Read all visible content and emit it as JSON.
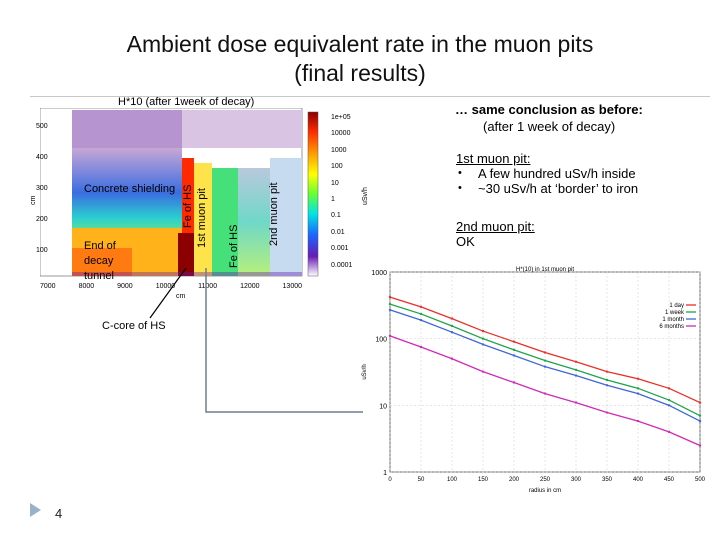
{
  "slide": {
    "title_line1": "Ambient dose equivalent rate in the muon pits",
    "title_line2": "(final results)",
    "page_number": "4"
  },
  "left_figure": {
    "title": "H*10 (after 1week of decay)",
    "y_axis_label": "cm",
    "x_axis_label": "cm",
    "y_ticks": [
      "500",
      "400",
      "300",
      "200",
      "100",
      "0"
    ],
    "x_ticks": [
      "7000",
      "8000",
      "9000",
      "10000",
      "11000",
      "12000",
      "13000"
    ],
    "colorbar_label": "uSv/h",
    "colorbar_ticks": [
      "1e+05",
      "10000",
      "1000",
      "100",
      "10",
      "1",
      "0.1",
      "0.01",
      "0.001",
      "0.0001"
    ],
    "labels": {
      "concrete": "Concrete shielding",
      "end_tunnel_1": "End of",
      "end_tunnel_2": "decay",
      "end_tunnel_3": "tunnel",
      "fe_hs_1": "Fe of HS",
      "first_pit": "1st muon pit",
      "fe_hs_2": "Fe of HS",
      "second_pit": "2nd muon pit",
      "ccore": "C-core of HS"
    }
  },
  "summary": {
    "line1": "… same conclusion as before:",
    "line2": "(after 1 week of decay)"
  },
  "notes": {
    "pit1_heading": "1st muon pit:",
    "pit1_items": [
      "A few hundred uSv/h inside",
      "~30 uSv/h at ‘border’ to iron"
    ],
    "pit2_heading": "2nd muon pit:",
    "pit2_text": "OK"
  },
  "chart_data": {
    "type": "line",
    "title": "H*(10) in 1st muon pit",
    "xlabel": "radius in cm",
    "ylabel": "uSv/h",
    "x_scale": "linear",
    "y_scale": "log",
    "xlim": [
      0,
      500
    ],
    "ylim": [
      1,
      1000
    ],
    "x_ticks": [
      0,
      50,
      100,
      150,
      200,
      250,
      300,
      350,
      400,
      450,
      500
    ],
    "y_ticks": [
      1,
      10,
      100,
      1000
    ],
    "legend_position": "top-right",
    "x": [
      0,
      50,
      100,
      150,
      200,
      250,
      300,
      350,
      400,
      450,
      500
    ],
    "series": [
      {
        "name": "1 day",
        "color": "#e8302a",
        "values": [
          420,
          300,
          200,
          130,
          90,
          62,
          45,
          32,
          25,
          18,
          11
        ]
      },
      {
        "name": "1 week",
        "color": "#1fa34a",
        "values": [
          330,
          235,
          155,
          100,
          68,
          47,
          34,
          24,
          18,
          12,
          7
        ]
      },
      {
        "name": "1 month",
        "color": "#3f66d8",
        "values": [
          270,
          190,
          125,
          82,
          56,
          38,
          28,
          20,
          15,
          10,
          5.8
        ]
      },
      {
        "name": "6 months",
        "color": "#d02ab8",
        "values": [
          110,
          75,
          50,
          32,
          22,
          15,
          11,
          7.8,
          5.8,
          4,
          2.5
        ]
      }
    ]
  }
}
